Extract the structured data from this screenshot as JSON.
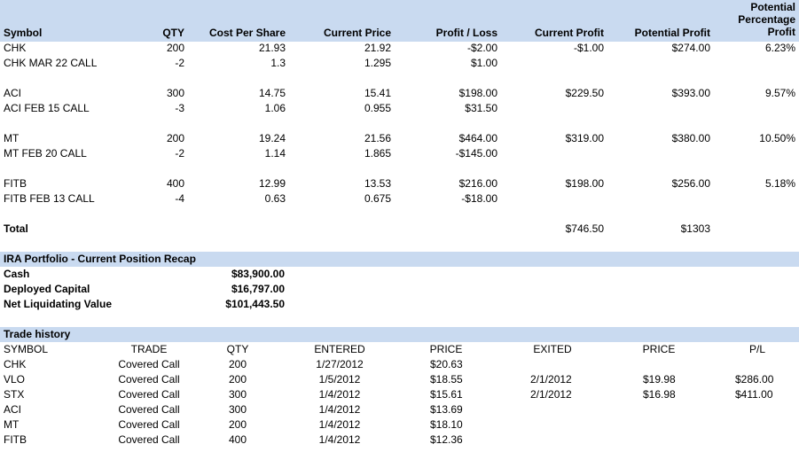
{
  "positions": {
    "headers": {
      "symbol": "Symbol",
      "qty": "QTY",
      "cost_per_share": "Cost Per Share",
      "current_price": "Current Price",
      "profit_loss": "Profit / Loss",
      "current_profit": "Current Profit",
      "potential_profit": "Potential Profit",
      "potential_pct_line1": "Potential",
      "potential_pct_line2": "Percentage",
      "potential_pct_line3": "Profit"
    },
    "rows": [
      {
        "symbol": "CHK",
        "qty": "200",
        "cost": "21.93",
        "price": "21.92",
        "pl": "-$2.00",
        "cur_profit": "-$1.00",
        "pot_profit": "$274.00",
        "pot_pct": "6.23%"
      },
      {
        "symbol": "CHK MAR 22 CALL",
        "qty": "-2",
        "cost": "1.3",
        "price": "1.295",
        "pl": "$1.00",
        "cur_profit": "",
        "pot_profit": "",
        "pot_pct": ""
      },
      {
        "symbol": "ACI",
        "qty": "300",
        "cost": "14.75",
        "price": "15.41",
        "pl": "$198.00",
        "cur_profit": "$229.50",
        "pot_profit": "$393.00",
        "pot_pct": "9.57%"
      },
      {
        "symbol": "ACI FEB 15 CALL",
        "qty": "-3",
        "cost": "1.06",
        "price": "0.955",
        "pl": "$31.50",
        "cur_profit": "",
        "pot_profit": "",
        "pot_pct": ""
      },
      {
        "symbol": "MT",
        "qty": "200",
        "cost": "19.24",
        "price": "21.56",
        "pl": "$464.00",
        "cur_profit": "$319.00",
        "pot_profit": "$380.00",
        "pot_pct": "10.50%"
      },
      {
        "symbol": "MT FEB 20 CALL",
        "qty": "-2",
        "cost": "1.14",
        "price": "1.865",
        "pl": "-$145.00",
        "cur_profit": "",
        "pot_profit": "",
        "pot_pct": ""
      },
      {
        "symbol": "FITB",
        "qty": "400",
        "cost": "12.99",
        "price": "13.53",
        "pl": "$216.00",
        "cur_profit": "$198.00",
        "pot_profit": "$256.00",
        "pot_pct": "5.18%"
      },
      {
        "symbol": "FITB FEB 13 CALL",
        "qty": "-4",
        "cost": "0.63",
        "price": "0.675",
        "pl": "-$18.00",
        "cur_profit": "",
        "pot_profit": "",
        "pot_pct": ""
      }
    ],
    "total": {
      "label": "Total",
      "cur_profit": "$746.50",
      "pot_profit": "$1303"
    }
  },
  "recap": {
    "title": "IRA Portfolio - Current Position Recap",
    "rows": [
      {
        "label": "Cash",
        "value": "$83,900.00"
      },
      {
        "label": "Deployed Capital",
        "value": "$16,797.00"
      },
      {
        "label": "Net Liquidating Value",
        "value": "$101,443.50"
      }
    ]
  },
  "history": {
    "title": "Trade history",
    "headers": {
      "symbol": "SYMBOL",
      "trade": "TRADE",
      "qty": "QTY",
      "entered": "ENTERED",
      "price": "PRICE",
      "exited": "EXITED",
      "exit_price": "PRICE",
      "pl": "P/L"
    },
    "rows": [
      {
        "symbol": "CHK",
        "trade": "Covered Call",
        "qty": "200",
        "entered": "1/27/2012",
        "price": "$20.63",
        "exited": "",
        "exit_price": "",
        "pl": ""
      },
      {
        "symbol": "VLO",
        "trade": "Covered Call",
        "qty": "200",
        "entered": "1/5/2012",
        "price": "$18.55",
        "exited": "2/1/2012",
        "exit_price": "$19.98",
        "pl": "$286.00"
      },
      {
        "symbol": "STX",
        "trade": "Covered Call",
        "qty": "300",
        "entered": "1/4/2012",
        "price": "$15.61",
        "exited": "2/1/2012",
        "exit_price": "$16.98",
        "pl": "$411.00"
      },
      {
        "symbol": "ACI",
        "trade": "Covered Call",
        "qty": "300",
        "entered": "1/4/2012",
        "price": "$13.69",
        "exited": "",
        "exit_price": "",
        "pl": ""
      },
      {
        "symbol": "MT",
        "trade": "Covered Call",
        "qty": "200",
        "entered": "1/4/2012",
        "price": "$18.10",
        "exited": "",
        "exit_price": "",
        "pl": ""
      },
      {
        "symbol": "FITB",
        "trade": "Covered Call",
        "qty": "400",
        "entered": "1/4/2012",
        "price": "$12.36",
        "exited": "",
        "exit_price": "",
        "pl": ""
      }
    ]
  }
}
